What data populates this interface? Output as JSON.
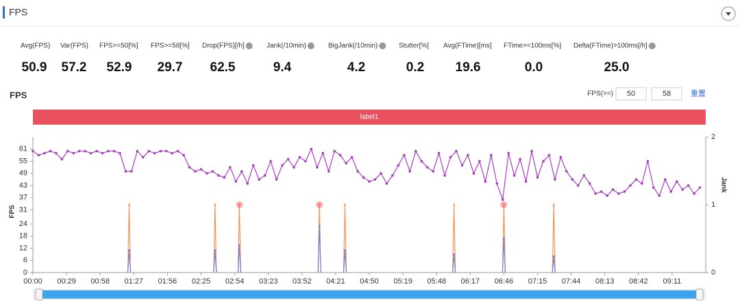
{
  "header": {
    "title": "FPS"
  },
  "stats": [
    {
      "label": "Avg(FPS)",
      "value": "50.9",
      "help": false
    },
    {
      "label": "Var(FPS)",
      "value": "57.2",
      "help": false
    },
    {
      "label": "FPS>=50[%]",
      "value": "52.9",
      "help": false
    },
    {
      "label": "FPS>=58[%]",
      "value": "29.7",
      "help": false
    },
    {
      "label": "Drop(FPS)[/h]",
      "value": "62.5",
      "help": true
    },
    {
      "label": "Jank(/10min)",
      "value": "9.4",
      "help": true
    },
    {
      "label": "BigJank(/10min)",
      "value": "4.2",
      "help": true
    },
    {
      "label": "Stutter[%]",
      "value": "0.2",
      "help": false
    },
    {
      "label": "Avg(FTime)[ms]",
      "value": "19.6",
      "help": false
    },
    {
      "label": "FTime>=100ms[%]",
      "value": "0.0",
      "help": false
    },
    {
      "label": "Delta(FTime)>100ms[/h]",
      "value": "25.0",
      "help": true
    }
  ],
  "chart_data": {
    "type": "line",
    "title": "FPS",
    "threshold_label": "FPS(>=)",
    "thresholds": [
      "50",
      "58"
    ],
    "reset": "重置",
    "band_label": "label1",
    "ylabel": "FPS",
    "y2label": "Jank",
    "xlim": [
      0,
      580
    ],
    "ylim": [
      0,
      67
    ],
    "y2lim": [
      0,
      2
    ],
    "xticks": [
      {
        "value": 0,
        "label": "00:00"
      },
      {
        "value": 29,
        "label": "00:29"
      },
      {
        "value": 58,
        "label": "00:58"
      },
      {
        "value": 87,
        "label": "01:27"
      },
      {
        "value": 116,
        "label": "01:56"
      },
      {
        "value": 145,
        "label": "02:25"
      },
      {
        "value": 174,
        "label": "02:54"
      },
      {
        "value": 203,
        "label": "03:23"
      },
      {
        "value": 232,
        "label": "03:52"
      },
      {
        "value": 261,
        "label": "04:21"
      },
      {
        "value": 290,
        "label": "04:50"
      },
      {
        "value": 319,
        "label": "05:19"
      },
      {
        "value": 348,
        "label": "05:48"
      },
      {
        "value": 377,
        "label": "06:17"
      },
      {
        "value": 406,
        "label": "06:46"
      },
      {
        "value": 435,
        "label": "07:15"
      },
      {
        "value": 464,
        "label": "07:44"
      },
      {
        "value": 493,
        "label": "08:13"
      },
      {
        "value": 522,
        "label": "08:42"
      },
      {
        "value": 551,
        "label": "09:11"
      }
    ],
    "yticks": [
      0,
      6,
      12,
      18,
      24,
      31,
      37,
      43,
      49,
      55,
      61
    ],
    "y2ticks": [
      0,
      1,
      2
    ],
    "series": [
      {
        "name": "FPS",
        "color": "#a63dbf",
        "style": "line",
        "x": [
          0,
          5,
          10,
          15,
          20,
          25,
          30,
          35,
          40,
          45,
          50,
          55,
          60,
          65,
          70,
          75,
          80,
          85,
          90,
          95,
          100,
          105,
          110,
          115,
          120,
          125,
          130,
          135,
          140,
          145,
          150,
          155,
          160,
          165,
          170,
          175,
          180,
          185,
          190,
          195,
          200,
          205,
          210,
          215,
          220,
          225,
          230,
          235,
          240,
          245,
          250,
          255,
          260,
          265,
          270,
          275,
          280,
          285,
          290,
          295,
          300,
          305,
          310,
          315,
          320,
          325,
          330,
          335,
          340,
          345,
          350,
          355,
          360,
          365,
          370,
          375,
          380,
          385,
          390,
          395,
          400,
          405,
          410,
          415,
          420,
          425,
          430,
          435,
          440,
          445,
          450,
          455,
          460,
          465,
          470,
          475,
          480,
          485,
          490,
          495,
          500,
          505,
          510,
          515,
          520,
          525,
          530,
          535,
          540,
          545,
          550,
          555,
          560,
          565,
          570,
          575
        ],
        "values": [
          60,
          58,
          59,
          60,
          59,
          56,
          60,
          59,
          60,
          60,
          59,
          60,
          59,
          60,
          60,
          59,
          50,
          50,
          60,
          57,
          60,
          59,
          60,
          60,
          59,
          60,
          58,
          52,
          50,
          51,
          49,
          50,
          48,
          47,
          52,
          45,
          50,
          44,
          53,
          46,
          48,
          55,
          46,
          53,
          56,
          52,
          57,
          55,
          61,
          52,
          59,
          50,
          60,
          58,
          54,
          57,
          50,
          47,
          45,
          46,
          49,
          44,
          48,
          53,
          58,
          50,
          60,
          55,
          52,
          50,
          59,
          48,
          57,
          60,
          53,
          58,
          49,
          55,
          45,
          58,
          44,
          36,
          59,
          48,
          56,
          45,
          60,
          47,
          55,
          58,
          46,
          57,
          50,
          46,
          43,
          48,
          44,
          39,
          40,
          38,
          41,
          39,
          40,
          43,
          46,
          44,
          55,
          42,
          38,
          46,
          40,
          45,
          41,
          43,
          39,
          42
        ]
      },
      {
        "name": "Jank",
        "color": "#f59258",
        "style": "spike",
        "axis": "y2",
        "x": [
          83,
          157,
          178,
          247,
          269,
          363,
          406,
          449
        ],
        "values": [
          1,
          1,
          1,
          1,
          1,
          1,
          1,
          1
        ]
      },
      {
        "color": "#6f7fd6",
        "style": "spike",
        "x": [
          83,
          157,
          178,
          247,
          269,
          363,
          406,
          449
        ],
        "values": [
          11,
          11,
          13.5,
          23,
          11,
          9,
          17,
          8
        ]
      },
      {
        "color": "#e84a5a",
        "style": "marker",
        "axis": "y2",
        "x": [
          178,
          247,
          406
        ],
        "values": [
          1,
          1,
          1
        ]
      }
    ]
  }
}
